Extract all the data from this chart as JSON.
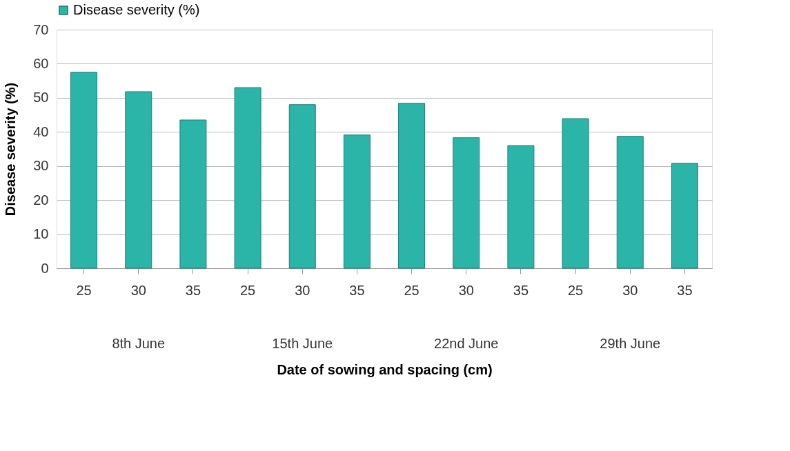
{
  "chart_data": {
    "type": "bar",
    "xlabel": "Date of sowing and spacing (cm)",
    "ylabel": "Disease severity (%)",
    "categories": [
      "25",
      "30",
      "35",
      "25",
      "30",
      "35",
      "25",
      "30",
      "35",
      "25",
      "30",
      "35"
    ],
    "series": [
      {
        "name": "Disease severity (%)",
        "color": "#2bb5a8",
        "values": [
          57.5,
          51.8,
          43.5,
          53.0,
          48.0,
          39.1,
          48.4,
          38.3,
          36.0,
          43.9,
          38.7,
          30.8
        ]
      }
    ],
    "annotations": [
      "8th June",
      "15th June",
      "22nd June",
      "29th June"
    ],
    "ylim": [
      0,
      70
    ],
    "yticks": [
      0,
      10,
      20,
      30,
      40,
      50,
      60,
      70
    ],
    "grid": "y",
    "legend": "top"
  }
}
